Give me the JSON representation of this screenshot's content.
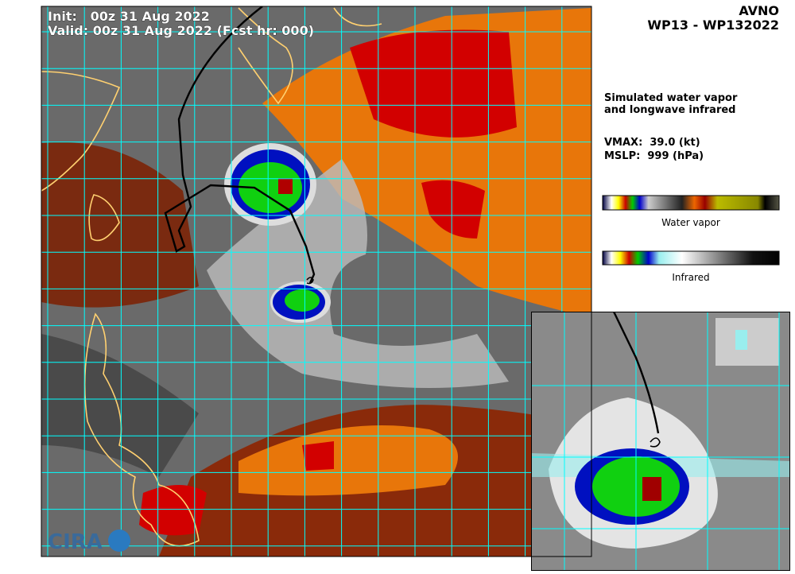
{
  "header": {
    "init": "Init:   00z 31 Aug 2022",
    "valid": "Valid: 00z 31 Aug 2022 (Fcst hr: 000)",
    "model": "AVNO",
    "storm": "WP13 - WP132022"
  },
  "info": {
    "description": [
      "Simulated water vapor",
      "and longwave infrared"
    ],
    "vmax": "VMAX:  39.0 (kt)",
    "mslp": "MSLP:  999 (hPa)"
  },
  "colorbars": [
    "Water vapor",
    "Infrared"
  ],
  "logo": "CIRA"
}
